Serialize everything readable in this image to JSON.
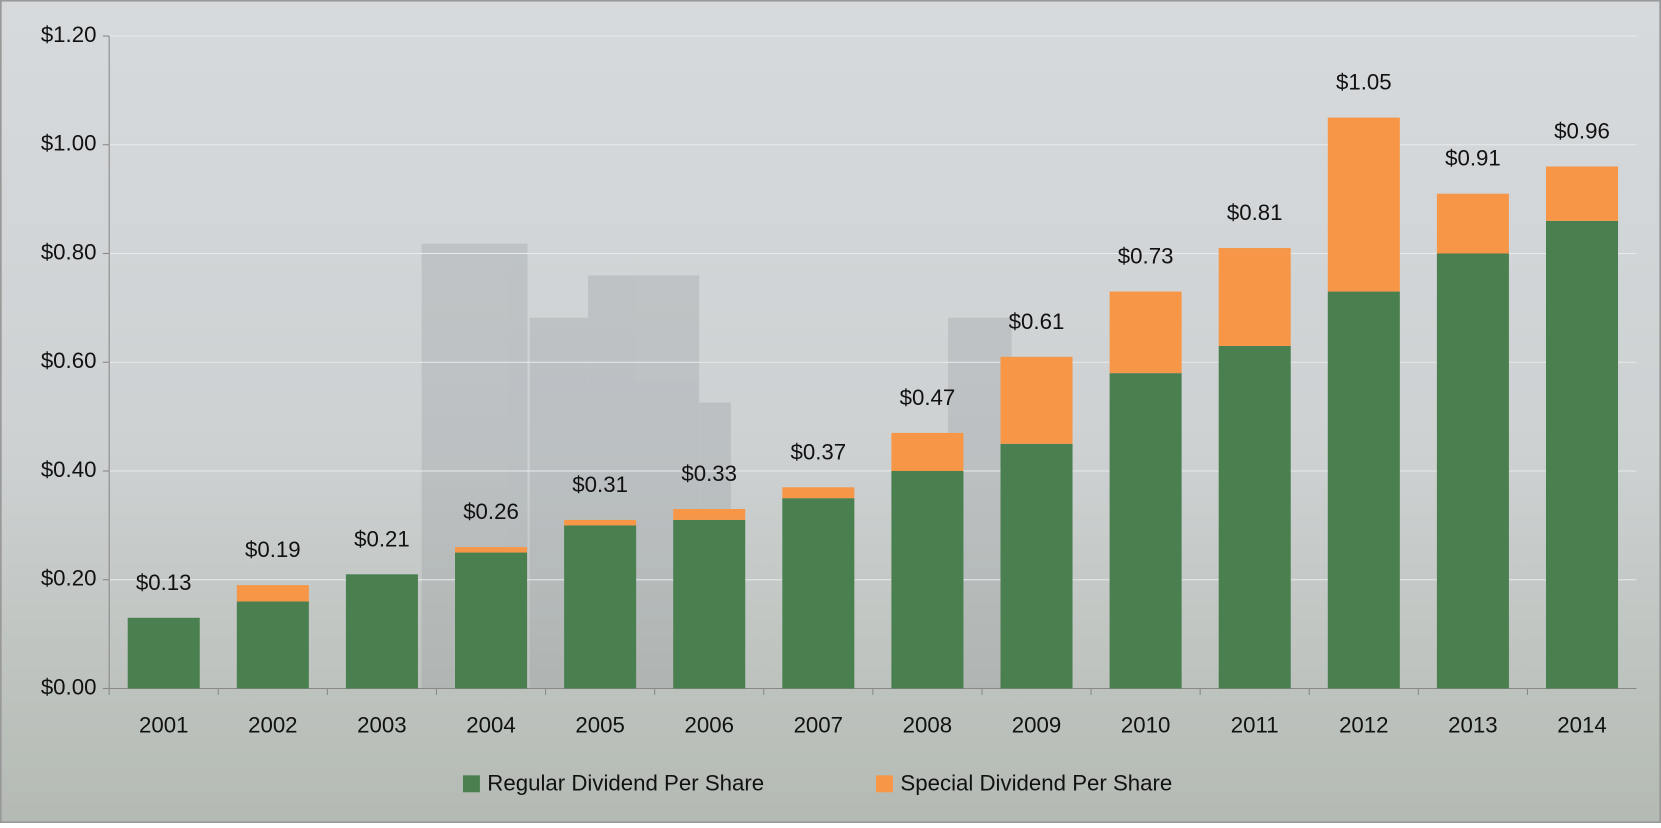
{
  "chart_data": {
    "type": "stacked_bar",
    "categories": [
      "2001",
      "2002",
      "2003",
      "2004",
      "2005",
      "2006",
      "2007",
      "2008",
      "2009",
      "2010",
      "2011",
      "2012",
      "2013",
      "2014"
    ],
    "series": [
      {
        "name": "Regular Dividend Per Share",
        "color": "#4a7f4f",
        "values": [
          0.13,
          0.16,
          0.21,
          0.25,
          0.3,
          0.31,
          0.35,
          0.4,
          0.45,
          0.58,
          0.63,
          0.73,
          0.8,
          0.86
        ]
      },
      {
        "name": "Special Dividend Per Share",
        "color": "#f79646",
        "values": [
          0,
          0.03,
          0,
          0.01,
          0.01,
          0.02,
          0.02,
          0.07,
          0.16,
          0.15,
          0.18,
          0.32,
          0.11,
          0.1
        ]
      }
    ],
    "total_labels": [
      "$0.13",
      "$0.19",
      "$0.21",
      "$0.26",
      "$0.31",
      "$0.33",
      "$0.37",
      "$0.47",
      "$0.61",
      "$0.73",
      "$0.81",
      "$1.05",
      "$0.91",
      "$0.96"
    ],
    "ylim": [
      0,
      1.2
    ],
    "yticks": [
      {
        "value": 0,
        "label": "$0.00"
      },
      {
        "value": 0.2,
        "label": "$0.20"
      },
      {
        "value": 0.4,
        "label": "$0.40"
      },
      {
        "value": 0.6,
        "label": "$0.60"
      },
      {
        "value": 0.8,
        "label": "$0.80"
      },
      {
        "value": 1.0,
        "label": "$1.00"
      },
      {
        "value": 1.2,
        "label": "$1.20"
      }
    ],
    "grid": true,
    "legend": "bottom"
  }
}
